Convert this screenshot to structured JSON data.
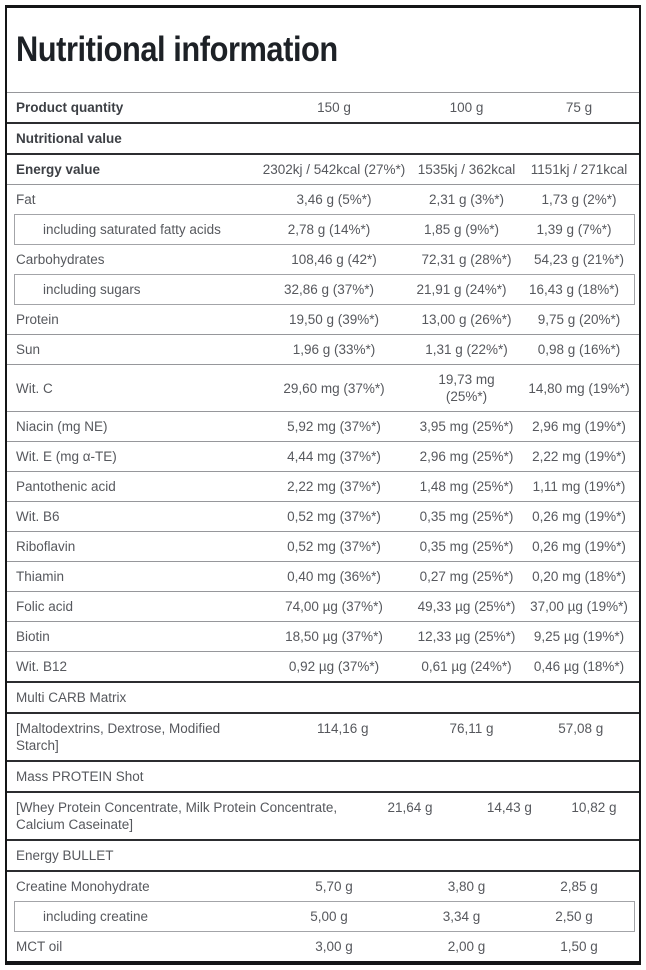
{
  "title": "Nutritional information",
  "table": {
    "rows": [
      {
        "label": "Product quantity",
        "values": [
          "150 g",
          "100 g",
          "75 g"
        ],
        "style": "bold",
        "border": "light"
      },
      {
        "label": "Nutritional value",
        "values": [
          "",
          "",
          ""
        ],
        "style": "bold",
        "border": "dark"
      },
      {
        "label": "Energy value",
        "values": [
          "2302kj / 542kcal (27%*)",
          "1535kj / 362kcal",
          "1151kj / 271kcal"
        ],
        "style": "bold",
        "border": "dark"
      },
      {
        "label": "Fat",
        "values": [
          "3,46 g (5%*)",
          "2,31 g (3%*)",
          "1,73 g (2%*)"
        ],
        "style": "normal",
        "border": "light"
      },
      {
        "label": "including saturated fatty acids",
        "values": [
          "2,78 g (14%*)",
          "1,85 g (9%*)",
          "1,39 g (7%*)"
        ],
        "style": "sub",
        "border": "none"
      },
      {
        "label": "Carbohydrates",
        "values": [
          "108,46 g (42*)",
          "72,31 g (28%*)",
          "54,23 g (21%*)"
        ],
        "style": "normal",
        "border": "none"
      },
      {
        "label": "including sugars",
        "values": [
          "32,86 g (37%*)",
          "21,91 g (24%*)",
          "16,43 g (18%*)"
        ],
        "style": "sub",
        "border": "none"
      },
      {
        "label": "Protein",
        "values": [
          "19,50 g (39%*)",
          "13,00 g (26%*)",
          "9,75 g (20%*)"
        ],
        "style": "normal",
        "border": "none"
      },
      {
        "label": "Sun",
        "values": [
          "1,96 g (33%*)",
          "1,31 g (22%*)",
          "0,98 g (16%*)"
        ],
        "style": "normal",
        "border": "light"
      },
      {
        "label": "Wit. C",
        "values": [
          "29,60 mg (37%*)",
          "19,73 mg (25%*)",
          "14,80 mg (19%*)"
        ],
        "style": "normal",
        "border": "light"
      },
      {
        "label": "Niacin (mg NE)",
        "values": [
          "5,92 mg (37%*)",
          "3,95 mg (25%*)",
          "2,96 mg (19%*)"
        ],
        "style": "normal",
        "border": "light"
      },
      {
        "label": "Wit. E (mg α-TE)",
        "values": [
          "4,44 mg (37%*)",
          "2,96 mg (25%*)",
          "2,22 mg (19%*)"
        ],
        "style": "normal",
        "border": "light"
      },
      {
        "label": "Pantothenic acid",
        "values": [
          "2,22 mg (37%*)",
          "1,48 mg (25%*)",
          "1,11 mg (19%*)"
        ],
        "style": "normal",
        "border": "light"
      },
      {
        "label": "Wit. B6",
        "values": [
          "0,52 mg (37%*)",
          "0,35 mg (25%*)",
          "0,26 mg (19%*)"
        ],
        "style": "normal",
        "border": "light"
      },
      {
        "label": "Riboflavin",
        "values": [
          "0,52 mg (37%*)",
          "0,35 mg (25%*)",
          "0,26 mg (19%*)"
        ],
        "style": "normal",
        "border": "light"
      },
      {
        "label": "Thiamin",
        "values": [
          "0,40 mg (36%*)",
          "0,27 mg (25%*)",
          "0,20 mg (18%*)"
        ],
        "style": "normal",
        "border": "light"
      },
      {
        "label": "Folic acid",
        "values": [
          "74,00 µg (37%*)",
          "49,33 µg (25%*)",
          "37,00 µg (19%*)"
        ],
        "style": "normal",
        "border": "light"
      },
      {
        "label": "Biotin",
        "values": [
          "18,50 µg (37%*)",
          "12,33 µg (25%*)",
          "9,25 µg (19%*)"
        ],
        "style": "normal",
        "border": "light"
      },
      {
        "label": "Wit. B12",
        "values": [
          "0,92 µg (37%*)",
          "0,61 µg (24%*)",
          "0,46 µg (18%*)"
        ],
        "style": "normal",
        "border": "light"
      },
      {
        "label": "Multi CARB Matrix",
        "values": [
          "",
          "",
          ""
        ],
        "style": "normal",
        "border": "dark"
      },
      {
        "label": "[Maltodextrins, Dextrose, Modified Starch]",
        "values": [
          "114,16 g",
          "76,11 g",
          "57,08 g"
        ],
        "style": "wrap",
        "border": "dark"
      },
      {
        "label": "Mass PROTEIN Shot",
        "values": [
          "",
          "",
          ""
        ],
        "style": "normal",
        "border": "dark"
      },
      {
        "label": "[Whey Protein Concentrate, Milk Protein Concentrate, Calcium Caseinate]",
        "values": [
          "21,64 g",
          "14,43 g",
          "10,82 g"
        ],
        "style": "wrap",
        "border": "dark"
      },
      {
        "label": "Energy BULLET",
        "values": [
          "",
          "",
          ""
        ],
        "style": "normal",
        "border": "dark"
      },
      {
        "label": "Creatine Monohydrate",
        "values": [
          "5,70 g",
          "3,80 g",
          "2,85 g"
        ],
        "style": "normal",
        "border": "dark"
      },
      {
        "label": "including creatine",
        "values": [
          "5,00 g",
          "3,34 g",
          "2,50 g"
        ],
        "style": "sub",
        "border": "none"
      },
      {
        "label": "MCT oil",
        "values": [
          "3,00 g",
          "2,00 g",
          "1,50 g"
        ],
        "style": "normal",
        "border": "none"
      }
    ]
  },
  "colors": {
    "frame": "#141517",
    "title_text": "#1d2126",
    "bold_label": "#3c3f44",
    "body_text": "#56585d",
    "separator_light": "#96979b",
    "separator_dark": "#2c2d30",
    "sub_box_border": "#a3a4a8"
  }
}
